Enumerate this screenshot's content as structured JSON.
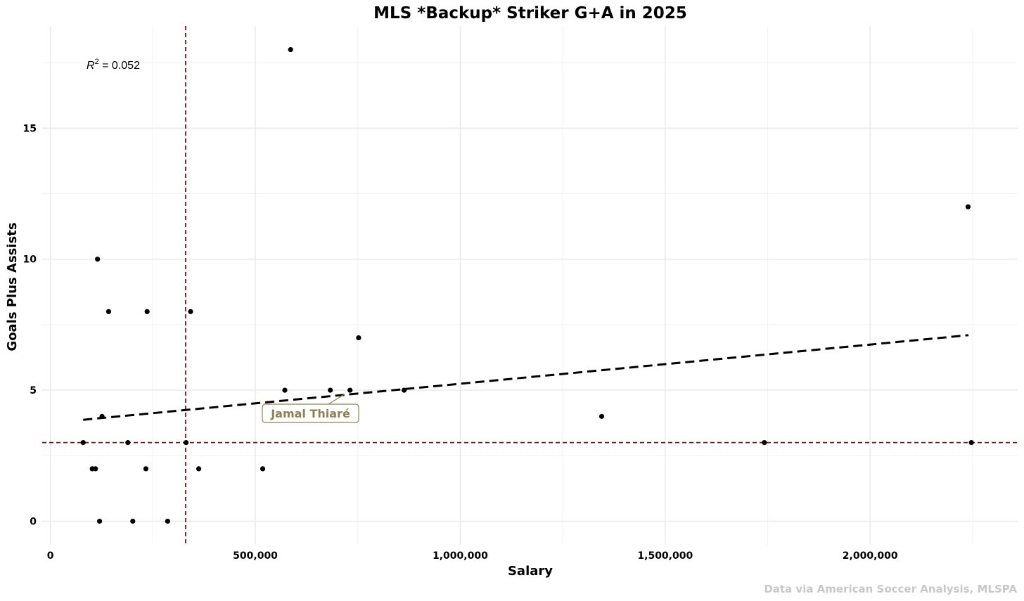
{
  "chart_data": {
    "type": "scatter",
    "title": "MLS *Backup* Striker G+A in 2025",
    "xlabel": "Salary",
    "ylabel": "Goals Plus Assists",
    "caption": "Data via American Soccer Analysis, MLSPA",
    "xlim": [
      -20000,
      2360000
    ],
    "ylim": [
      -0.9,
      18.9
    ],
    "x_ticks": [
      0,
      500000,
      1000000,
      1500000,
      2000000
    ],
    "x_tick_labels": [
      "0",
      "500,000",
      "1,000,000",
      "1,500,000",
      "2,000,000"
    ],
    "y_ticks": [
      0,
      5,
      10,
      15
    ],
    "y_tick_labels": [
      "0",
      "5",
      "10",
      "15"
    ],
    "grid": true,
    "legend": "none",
    "r_squared": {
      "prefix": "R",
      "superscript": "2",
      "value_text": " = 0.052"
    },
    "reference_lines": {
      "vertical_x": 330000,
      "horizontal_y": 3,
      "color": "#7a1a1a"
    },
    "trend_line": {
      "x_start": 80000,
      "y_start": 3.87,
      "x_end": 2240000,
      "y_end": 7.1,
      "style": "dashed",
      "color": "#000000"
    },
    "highlight": {
      "label": "Jamal Thiaré",
      "x": 730000,
      "y": 5,
      "color": "#8f7f55"
    },
    "points": [
      {
        "x": 80000,
        "y": 3
      },
      {
        "x": 102000,
        "y": 2
      },
      {
        "x": 110000,
        "y": 2
      },
      {
        "x": 115000,
        "y": 10
      },
      {
        "x": 120000,
        "y": 0
      },
      {
        "x": 126000,
        "y": 4
      },
      {
        "x": 142000,
        "y": 8
      },
      {
        "x": 189000,
        "y": 3
      },
      {
        "x": 201000,
        "y": 0
      },
      {
        "x": 233000,
        "y": 2
      },
      {
        "x": 236000,
        "y": 8
      },
      {
        "x": 286000,
        "y": 0
      },
      {
        "x": 331000,
        "y": 3
      },
      {
        "x": 342000,
        "y": 8
      },
      {
        "x": 362000,
        "y": 2
      },
      {
        "x": 518000,
        "y": 2
      },
      {
        "x": 572000,
        "y": 5
      },
      {
        "x": 586000,
        "y": 18
      },
      {
        "x": 683000,
        "y": 5
      },
      {
        "x": 731000,
        "y": 5
      },
      {
        "x": 752000,
        "y": 7
      },
      {
        "x": 863000,
        "y": 5
      },
      {
        "x": 1345000,
        "y": 4
      },
      {
        "x": 1742000,
        "y": 3
      },
      {
        "x": 2239000,
        "y": 12
      },
      {
        "x": 2247000,
        "y": 3
      }
    ]
  }
}
